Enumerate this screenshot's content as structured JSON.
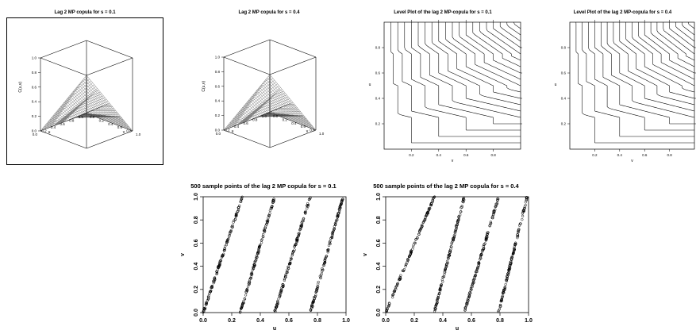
{
  "chart_data": [
    {
      "type": "surface",
      "title": "Lag 2 MP copula for s = 0.1",
      "xlabel": "u",
      "ylabel": "v",
      "zlabel": "C(u,v)",
      "s": 0.1,
      "xlim": [
        0,
        1
      ],
      "ylim": [
        0,
        1
      ],
      "zlim": [
        0,
        1
      ],
      "ticks": [
        "0.0",
        "0.2",
        "0.4",
        "0.6",
        "0.8",
        "1.0"
      ]
    },
    {
      "type": "surface",
      "title": "Lag 2 MP copula for s = 0.4",
      "xlabel": "u",
      "ylabel": "v",
      "zlabel": "C(u,v)",
      "s": 0.4,
      "xlim": [
        0,
        1
      ],
      "ylim": [
        0,
        1
      ],
      "zlim": [
        0,
        1
      ],
      "ticks": [
        "0.0",
        "0.2",
        "0.4",
        "0.6",
        "0.8",
        "1.0"
      ]
    },
    {
      "type": "contour",
      "title": "Level Plot of the lag 2 MP-copula for s = 0.1",
      "xlabel": "v",
      "ylabel": "u",
      "s": 0.1,
      "xlim": [
        0,
        1
      ],
      "ylim": [
        0,
        1
      ],
      "xticks": [
        "0.2",
        "0.4",
        "0.6",
        "0.8"
      ],
      "yticks": [
        "0.2",
        "0.4",
        "0.6",
        "0.8"
      ],
      "levels": [
        0.05,
        0.1,
        0.15,
        0.2,
        0.25,
        0.3,
        0.35,
        0.4,
        0.45,
        0.5,
        0.55,
        0.6,
        0.65,
        0.7,
        0.75,
        0.8,
        0.85,
        0.9,
        0.95
      ]
    },
    {
      "type": "contour",
      "title": "Level Plot of the lag 2 MP-copula for s = 0.4",
      "xlabel": "v",
      "ylabel": "u",
      "s": 0.4,
      "xlim": [
        0,
        1
      ],
      "ylim": [
        0,
        1
      ],
      "xticks": [
        "0.2",
        "0.4",
        "0.6",
        "0.8"
      ],
      "yticks": [
        "0.2",
        "0.4",
        "0.6",
        "0.8"
      ],
      "levels": [
        0.05,
        0.1,
        0.15,
        0.2,
        0.25,
        0.3,
        0.35,
        0.4,
        0.45,
        0.5,
        0.55,
        0.6,
        0.65,
        0.7,
        0.75,
        0.8,
        0.85,
        0.9,
        0.95
      ]
    },
    {
      "type": "scatter",
      "title": "500 sample points of the lag 2 MP copula for s = 0.1",
      "xlabel": "u",
      "ylabel": "v",
      "n_points": 500,
      "s": 0.1,
      "xlim": [
        0,
        1
      ],
      "ylim": [
        0,
        1
      ],
      "xticks": [
        "0.0",
        "0.2",
        "0.4",
        "0.6",
        "0.8",
        "1.0"
      ],
      "yticks": [
        "0.0",
        "0.2",
        "0.4",
        "0.6",
        "0.8",
        "1.0"
      ],
      "segments": [
        {
          "u": [
            0.0,
            0.275
          ],
          "v": [
            0.0,
            1.0
          ]
        },
        {
          "u": [
            0.26,
            0.5
          ],
          "v": [
            0.0,
            1.0
          ]
        },
        {
          "u": [
            0.5,
            0.75
          ],
          "v": [
            0.0,
            1.0
          ]
        },
        {
          "u": [
            0.75,
            0.98
          ],
          "v": [
            0.0,
            1.0
          ]
        }
      ]
    },
    {
      "type": "scatter",
      "title": "500 sample points of the lag 2 MP copula for s = 0.4",
      "xlabel": "u",
      "ylabel": "v",
      "n_points": 500,
      "s": 0.4,
      "xlim": [
        0,
        1
      ],
      "ylim": [
        0,
        1
      ],
      "xticks": [
        "0.0",
        "0.2",
        "0.4",
        "0.6",
        "0.8",
        "1.0"
      ],
      "yticks": [
        "0.0",
        "0.2",
        "0.4",
        "0.6",
        "0.8",
        "1.0"
      ],
      "segments": [
        {
          "u": [
            0.0,
            0.34
          ],
          "v": [
            0.0,
            1.0
          ]
        },
        {
          "u": [
            0.34,
            0.55
          ],
          "v": [
            0.0,
            1.0
          ]
        },
        {
          "u": [
            0.55,
            0.79
          ],
          "v": [
            0.0,
            1.0
          ]
        },
        {
          "u": [
            0.79,
            0.99
          ],
          "v": [
            0.0,
            1.0
          ]
        }
      ]
    }
  ]
}
